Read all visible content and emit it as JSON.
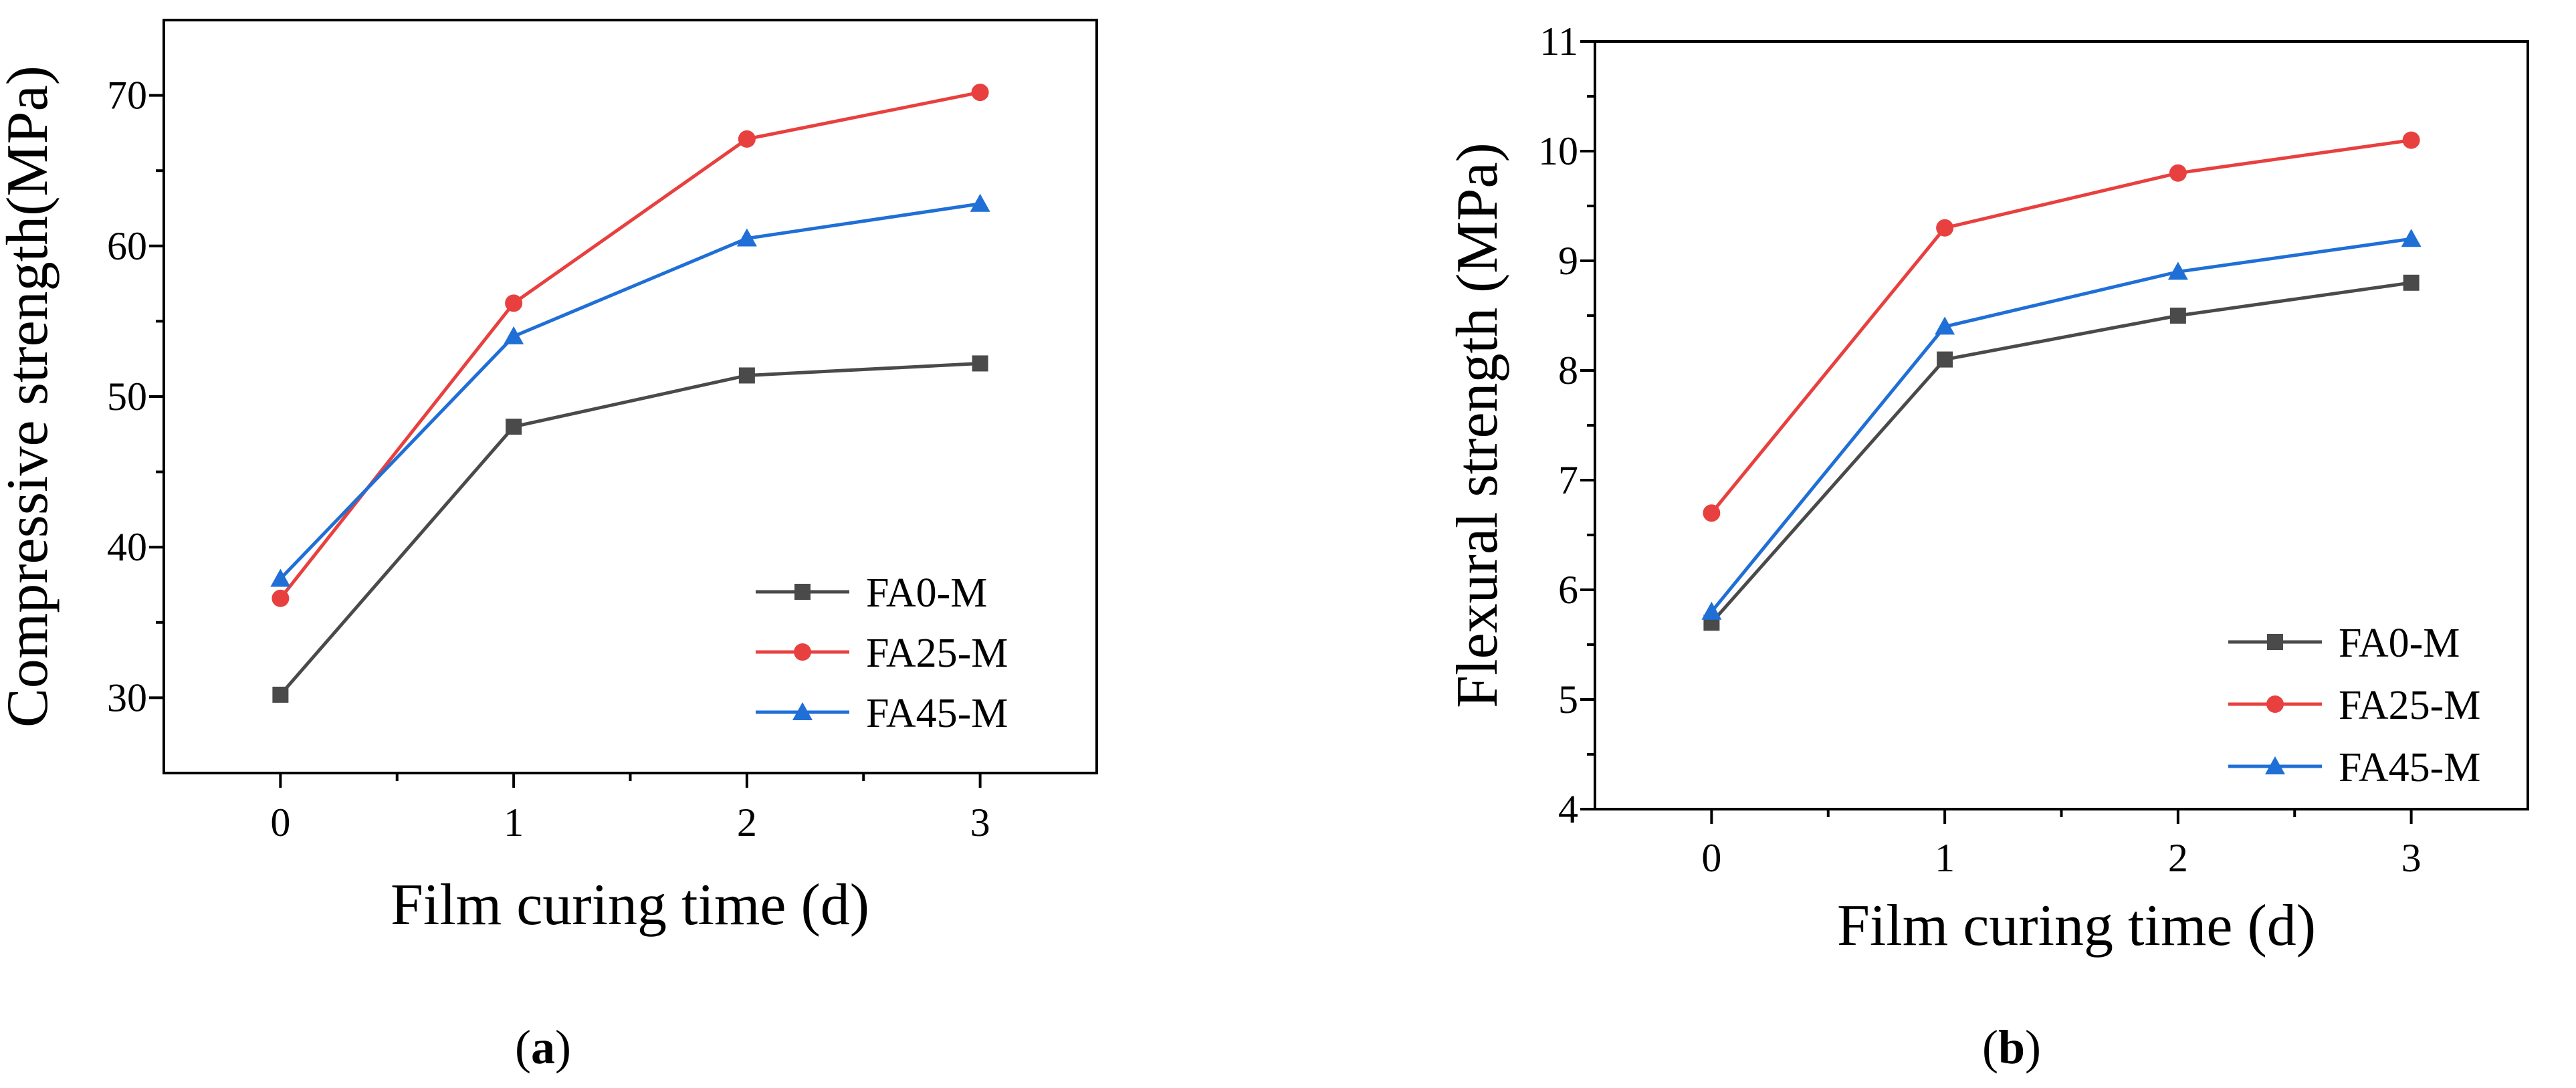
{
  "chart_data": [
    {
      "type": "line",
      "panel_label": "a",
      "title": "",
      "xlabel": "Film curing time (d)",
      "ylabel": "Compressive strength(MPa)",
      "x": [
        0,
        1,
        2,
        3
      ],
      "x_ticks": [
        "0",
        "1",
        "2",
        "3"
      ],
      "xlim": [
        -0.5,
        3.5
      ],
      "ylim": [
        25,
        75
      ],
      "y_ticks": [
        "30",
        "40",
        "50",
        "60",
        "70"
      ],
      "grid": false,
      "legend_position": "bottom-right",
      "series": [
        {
          "name": "FA0-M",
          "values": [
            30.2,
            48.0,
            51.4,
            52.2
          ],
          "color": "#4a4a4a",
          "marker": "square"
        },
        {
          "name": "FA25-M",
          "values": [
            36.6,
            56.2,
            67.1,
            70.2
          ],
          "color": "#e8403f",
          "marker": "circle"
        },
        {
          "name": "FA45-M",
          "values": [
            37.9,
            54.0,
            60.5,
            62.8
          ],
          "color": "#1f6fd6",
          "marker": "triangle"
        }
      ]
    },
    {
      "type": "line",
      "panel_label": "b",
      "title": "",
      "xlabel": "Film curing time (d)",
      "ylabel": "Flexural strength (MPa)",
      "x": [
        0,
        1,
        2,
        3
      ],
      "x_ticks": [
        "0",
        "1",
        "2",
        "3"
      ],
      "xlim": [
        -0.5,
        3.5
      ],
      "ylim": [
        4,
        11
      ],
      "y_ticks": [
        "4",
        "5",
        "6",
        "7",
        "8",
        "9",
        "10",
        "11"
      ],
      "grid": false,
      "legend_position": "bottom-right",
      "series": [
        {
          "name": "FA0-M",
          "values": [
            5.7,
            8.1,
            8.5,
            8.8
          ],
          "color": "#4a4a4a",
          "marker": "square"
        },
        {
          "name": "FA25-M",
          "values": [
            6.7,
            9.3,
            9.8,
            10.1
          ],
          "color": "#e8403f",
          "marker": "circle"
        },
        {
          "name": "FA45-M",
          "values": [
            5.8,
            8.4,
            8.9,
            9.2
          ],
          "color": "#1f6fd6",
          "marker": "triangle"
        }
      ]
    }
  ]
}
